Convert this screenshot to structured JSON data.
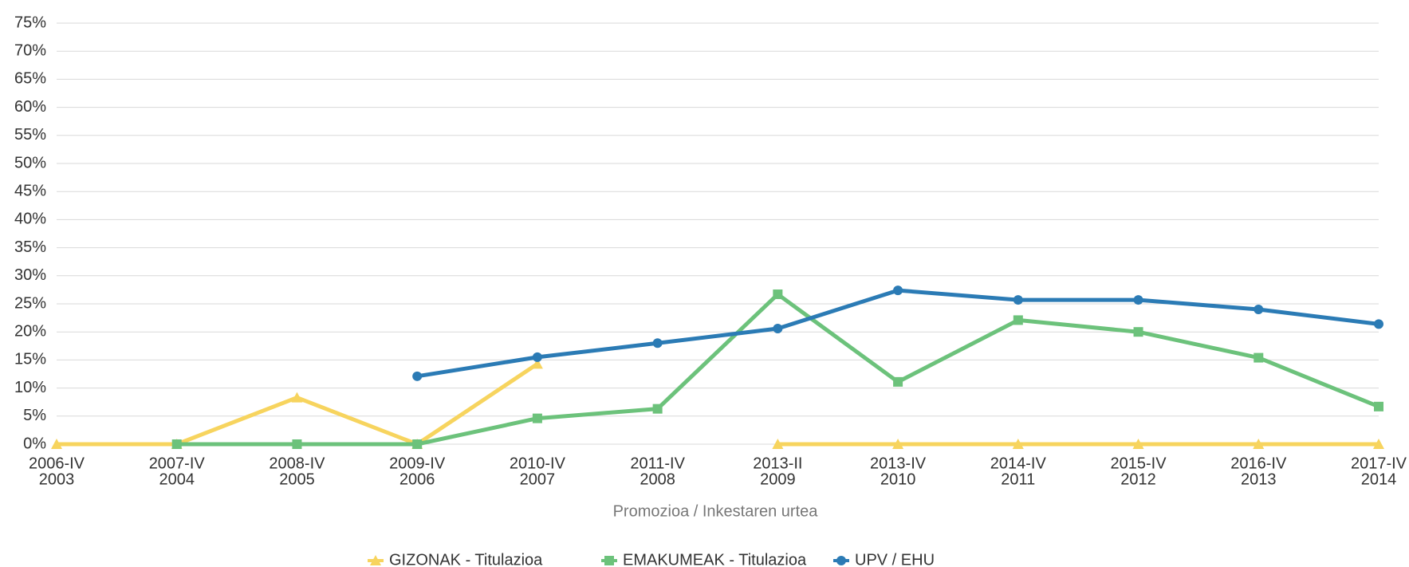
{
  "chart_data": {
    "type": "line",
    "x_label": "Promozioa / Inkestaren urtea",
    "categories": [
      [
        "2006-IV",
        "2003"
      ],
      [
        "2007-IV",
        "2004"
      ],
      [
        "2008-IV",
        "2005"
      ],
      [
        "2009-IV",
        "2006"
      ],
      [
        "2010-IV",
        "2007"
      ],
      [
        "2011-IV",
        "2008"
      ],
      [
        "2013-II",
        "2009"
      ],
      [
        "2013-IV",
        "2010"
      ],
      [
        "2014-IV",
        "2011"
      ],
      [
        "2015-IV",
        "2012"
      ],
      [
        "2016-IV",
        "2013"
      ],
      [
        "2017-IV",
        "2014"
      ]
    ],
    "series": [
      {
        "name": "GIZONAK - Titulazioa",
        "color": "#f7d45e",
        "marker": "triangle",
        "values": [
          0,
          0,
          8.3,
          0,
          14.3,
          null,
          0,
          0,
          0,
          0,
          0,
          0
        ]
      },
      {
        "name": "EMAKUMEAK - Titulazioa",
        "color": "#6cc27b",
        "marker": "square",
        "values": [
          null,
          0,
          0,
          0,
          4.6,
          6.3,
          26.7,
          11.1,
          22.1,
          20,
          15.4,
          6.7
        ]
      },
      {
        "name": "UPV / EHU",
        "color": "#2b7bb5",
        "marker": "circle",
        "values": [
          null,
          null,
          null,
          12.1,
          15.5,
          18,
          20.6,
          27.4,
          25.7,
          25.7,
          24,
          21.4
        ]
      }
    ],
    "ylim": [
      0,
      75
    ],
    "yticks": [
      {
        "value": 0,
        "label": "0%"
      },
      {
        "value": 5,
        "label": "5%"
      },
      {
        "value": 10,
        "label": "10%"
      },
      {
        "value": 15,
        "label": "15%"
      },
      {
        "value": 20,
        "label": "20%"
      },
      {
        "value": 25,
        "label": "25%"
      },
      {
        "value": 30,
        "label": "30%"
      },
      {
        "value": 35,
        "label": "35%"
      },
      {
        "value": 40,
        "label": "40%"
      },
      {
        "value": 45,
        "label": "45%"
      },
      {
        "value": 50,
        "label": "50%"
      },
      {
        "value": 55,
        "label": "55%"
      },
      {
        "value": 60,
        "label": "60%"
      },
      {
        "value": 65,
        "label": "65%"
      },
      {
        "value": 70,
        "label": "70%"
      },
      {
        "value": 75,
        "label": "75%"
      }
    ],
    "grid": true,
    "legend": "bottom"
  }
}
